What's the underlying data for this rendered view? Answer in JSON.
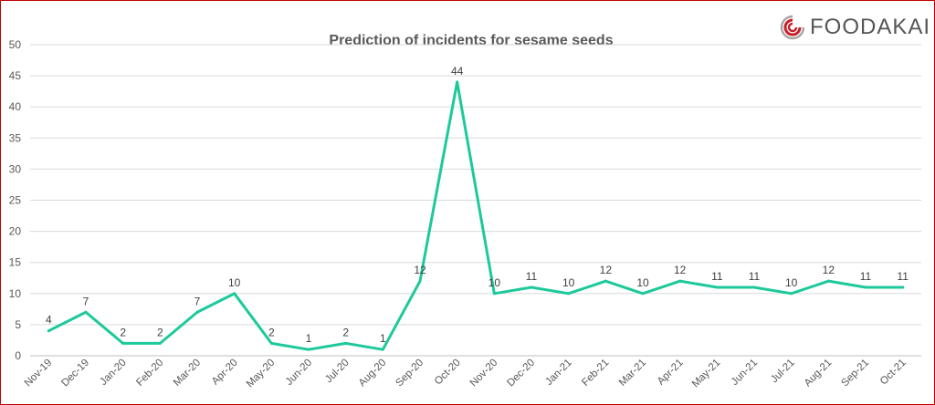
{
  "logo": {
    "text": "FOODAKAI"
  },
  "chart_data": {
    "type": "line",
    "title": "Prediction of incidents for sesame seeds",
    "xlabel": "",
    "ylabel": "",
    "ylim": [
      0,
      50
    ],
    "yticks": [
      0,
      5,
      10,
      15,
      20,
      25,
      30,
      35,
      40,
      45,
      50
    ],
    "grid": true,
    "categories": [
      "Nov-19",
      "Dec-19",
      "Jan-20",
      "Feb-20",
      "Mar-20",
      "Apr-20",
      "May-20",
      "Jun-20",
      "Jul-20",
      "Aug-20",
      "Sep-20",
      "Oct-20",
      "Nov-20",
      "Dec-20",
      "Jan-21",
      "Feb-21",
      "Mar-21",
      "Apr-21",
      "May-21",
      "Jun-21",
      "Jul-21",
      "Aug-21",
      "Sep-21",
      "Oct-21"
    ],
    "series": [
      {
        "values": [
          4,
          7,
          2,
          2,
          7,
          10,
          2,
          1,
          2,
          1,
          12,
          44,
          10,
          11,
          10,
          12,
          10,
          12,
          11,
          11,
          10,
          12,
          11,
          11
        ]
      }
    ],
    "colors": {
      "line": "#1dc99a",
      "grid": "#d9d9d9",
      "border": "#c00000",
      "logo_ring": "#c8202a",
      "logo_ring_gray": "#a6a6a6"
    }
  }
}
